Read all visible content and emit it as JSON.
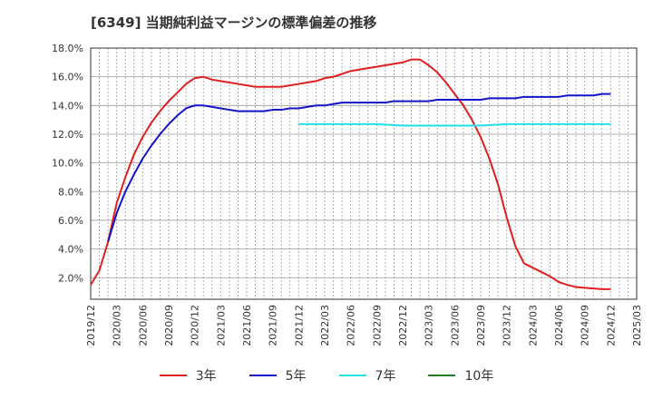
{
  "chart_data": {
    "type": "line",
    "title": "[6349]  当期純利益マージンの標準偏差の推移",
    "x_ticks": [
      "2019/12",
      "2020/03",
      "2020/06",
      "2020/09",
      "2020/12",
      "2021/03",
      "2021/06",
      "2021/09",
      "2021/12",
      "2022/03",
      "2022/06",
      "2022/09",
      "2022/12",
      "2023/03",
      "2023/06",
      "2023/09",
      "2023/12",
      "2024/03",
      "2024/06",
      "2024/09",
      "2024/12",
      "2025/03"
    ],
    "y_ticks": [
      "2.0%",
      "4.0%",
      "6.0%",
      "8.0%",
      "10.0%",
      "12.0%",
      "14.0%",
      "16.0%",
      "18.0%"
    ],
    "ylim": [
      0.5,
      18.0
    ],
    "legend_position": "bottom",
    "grid": true,
    "series": [
      {
        "name": "3年",
        "color": "#e02020",
        "values": [
          [
            0,
            1.5
          ],
          [
            1,
            2.5
          ],
          [
            2,
            4.5
          ],
          [
            3,
            7.2
          ],
          [
            4,
            9.0
          ],
          [
            5,
            10.6
          ],
          [
            6,
            11.8
          ],
          [
            7,
            12.8
          ],
          [
            8,
            13.6
          ],
          [
            9,
            14.3
          ],
          [
            10,
            14.9
          ],
          [
            11,
            15.5
          ],
          [
            12,
            15.9
          ],
          [
            13,
            16.0
          ],
          [
            14,
            15.8
          ],
          [
            15,
            15.7
          ],
          [
            16,
            15.6
          ],
          [
            17,
            15.5
          ],
          [
            18,
            15.4
          ],
          [
            19,
            15.3
          ],
          [
            20,
            15.3
          ],
          [
            21,
            15.3
          ],
          [
            22,
            15.3
          ],
          [
            23,
            15.4
          ],
          [
            24,
            15.5
          ],
          [
            25,
            15.6
          ],
          [
            26,
            15.7
          ],
          [
            27,
            15.9
          ],
          [
            28,
            16.0
          ],
          [
            29,
            16.2
          ],
          [
            30,
            16.4
          ],
          [
            31,
            16.5
          ],
          [
            32,
            16.6
          ],
          [
            33,
            16.7
          ],
          [
            34,
            16.8
          ],
          [
            35,
            16.9
          ],
          [
            36,
            17.0
          ],
          [
            37,
            17.2
          ],
          [
            38,
            17.2
          ],
          [
            39,
            16.8
          ],
          [
            40,
            16.3
          ],
          [
            41,
            15.6
          ],
          [
            42,
            14.8
          ],
          [
            43,
            14.0
          ],
          [
            44,
            13.0
          ],
          [
            45,
            11.8
          ],
          [
            46,
            10.3
          ],
          [
            47,
            8.5
          ],
          [
            48,
            6.2
          ],
          [
            49,
            4.2
          ],
          [
            50,
            3.0
          ],
          [
            51,
            2.7
          ],
          [
            52,
            2.4
          ],
          [
            53,
            2.1
          ],
          [
            54,
            1.7
          ],
          [
            55,
            1.5
          ],
          [
            56,
            1.35
          ],
          [
            57,
            1.3
          ],
          [
            58,
            1.25
          ],
          [
            59,
            1.2
          ],
          [
            60,
            1.2
          ]
        ]
      },
      {
        "name": "5年",
        "color": "#1414c8",
        "values": [
          [
            2,
            4.5
          ],
          [
            3,
            6.5
          ],
          [
            4,
            8.0
          ],
          [
            5,
            9.2
          ],
          [
            6,
            10.3
          ],
          [
            7,
            11.2
          ],
          [
            8,
            12.0
          ],
          [
            9,
            12.7
          ],
          [
            10,
            13.3
          ],
          [
            11,
            13.8
          ],
          [
            12,
            14.0
          ],
          [
            13,
            14.0
          ],
          [
            14,
            13.9
          ],
          [
            15,
            13.8
          ],
          [
            16,
            13.7
          ],
          [
            17,
            13.6
          ],
          [
            18,
            13.6
          ],
          [
            19,
            13.6
          ],
          [
            20,
            13.6
          ],
          [
            21,
            13.7
          ],
          [
            22,
            13.7
          ],
          [
            23,
            13.8
          ],
          [
            24,
            13.8
          ],
          [
            25,
            13.9
          ],
          [
            26,
            14.0
          ],
          [
            27,
            14.0
          ],
          [
            28,
            14.1
          ],
          [
            29,
            14.2
          ],
          [
            30,
            14.2
          ],
          [
            31,
            14.2
          ],
          [
            32,
            14.2
          ],
          [
            33,
            14.2
          ],
          [
            34,
            14.2
          ],
          [
            35,
            14.3
          ],
          [
            36,
            14.3
          ],
          [
            37,
            14.3
          ],
          [
            38,
            14.3
          ],
          [
            39,
            14.3
          ],
          [
            40,
            14.4
          ],
          [
            41,
            14.4
          ],
          [
            42,
            14.4
          ],
          [
            43,
            14.4
          ],
          [
            44,
            14.4
          ],
          [
            45,
            14.4
          ],
          [
            46,
            14.5
          ],
          [
            47,
            14.5
          ],
          [
            48,
            14.5
          ],
          [
            49,
            14.5
          ],
          [
            50,
            14.6
          ],
          [
            51,
            14.6
          ],
          [
            52,
            14.6
          ],
          [
            53,
            14.6
          ],
          [
            54,
            14.6
          ],
          [
            55,
            14.7
          ],
          [
            56,
            14.7
          ],
          [
            57,
            14.7
          ],
          [
            58,
            14.7
          ],
          [
            59,
            14.8
          ],
          [
            60,
            14.8
          ]
        ]
      },
      {
        "name": "7年",
        "color": "#22e0e8",
        "values": [
          [
            24,
            12.7
          ],
          [
            27,
            12.7
          ],
          [
            30,
            12.7
          ],
          [
            33,
            12.7
          ],
          [
            36,
            12.6
          ],
          [
            39,
            12.6
          ],
          [
            42,
            12.6
          ],
          [
            45,
            12.6
          ],
          [
            48,
            12.7
          ],
          [
            51,
            12.7
          ],
          [
            54,
            12.7
          ],
          [
            57,
            12.7
          ],
          [
            60,
            12.7
          ]
        ]
      },
      {
        "name": "10年",
        "color": "#208020",
        "values": []
      }
    ]
  }
}
